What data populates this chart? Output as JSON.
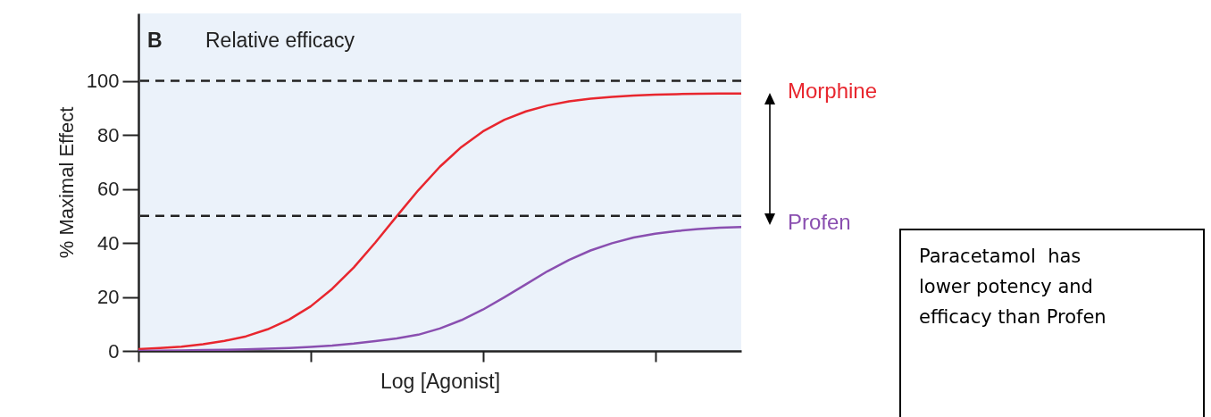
{
  "chart_data": {
    "type": "line",
    "title": "Relative efficacy",
    "xlabel": "Log [Agonist]",
    "ylabel": "% Maximal Effect",
    "categories": [
      null,
      null,
      null,
      null,
      null,
      null,
      null,
      null,
      null,
      null,
      null,
      null,
      null,
      null,
      null,
      null,
      null,
      null,
      null,
      null,
      null,
      null,
      null,
      null,
      null,
      null,
      null,
      null,
      null
    ],
    "ylim": [
      0,
      125
    ],
    "yticks": [
      0,
      20,
      40,
      60,
      80,
      100
    ],
    "tick_labels": "y",
    "legend": "right",
    "series": [
      {
        "name": "Morphine",
        "color": "#e8262e",
        "values": [
          0.7,
          1.1,
          1.6,
          2.5,
          3.7,
          5.4,
          8.0,
          11.6,
          16.5,
          23.0,
          30.9,
          40.1,
          49.9,
          59.5,
          68.2,
          75.5,
          81.3,
          85.6,
          88.7,
          90.9,
          92.4,
          93.4,
          94.1,
          94.6,
          94.9,
          95.1,
          95.2,
          95.3,
          95.3
        ]
      },
      {
        "name": "Profen",
        "color": "#8a4fb0",
        "values": [
          0,
          0.1,
          0.2,
          0.3,
          0.4,
          0.6,
          0.8,
          1.1,
          1.5,
          2.0,
          2.7,
          3.6,
          4.6,
          6.0,
          8.3,
          11.4,
          15.3,
          19.9,
          24.7,
          29.5,
          33.7,
          37.2,
          39.9,
          42.0,
          43.4,
          44.4,
          45.1,
          45.6,
          45.9
        ]
      }
    ],
    "ref_lines": [
      {
        "axis": "y",
        "value": 100,
        "color": "#222222",
        "line_style": "dashed"
      },
      {
        "axis": "y",
        "value": 50,
        "color": "#222222",
        "line_style": "dashed"
      }
    ],
    "annotations": [
      "B",
      "Paracetamol  has lower potency and efficacy than Profen"
    ]
  }
}
